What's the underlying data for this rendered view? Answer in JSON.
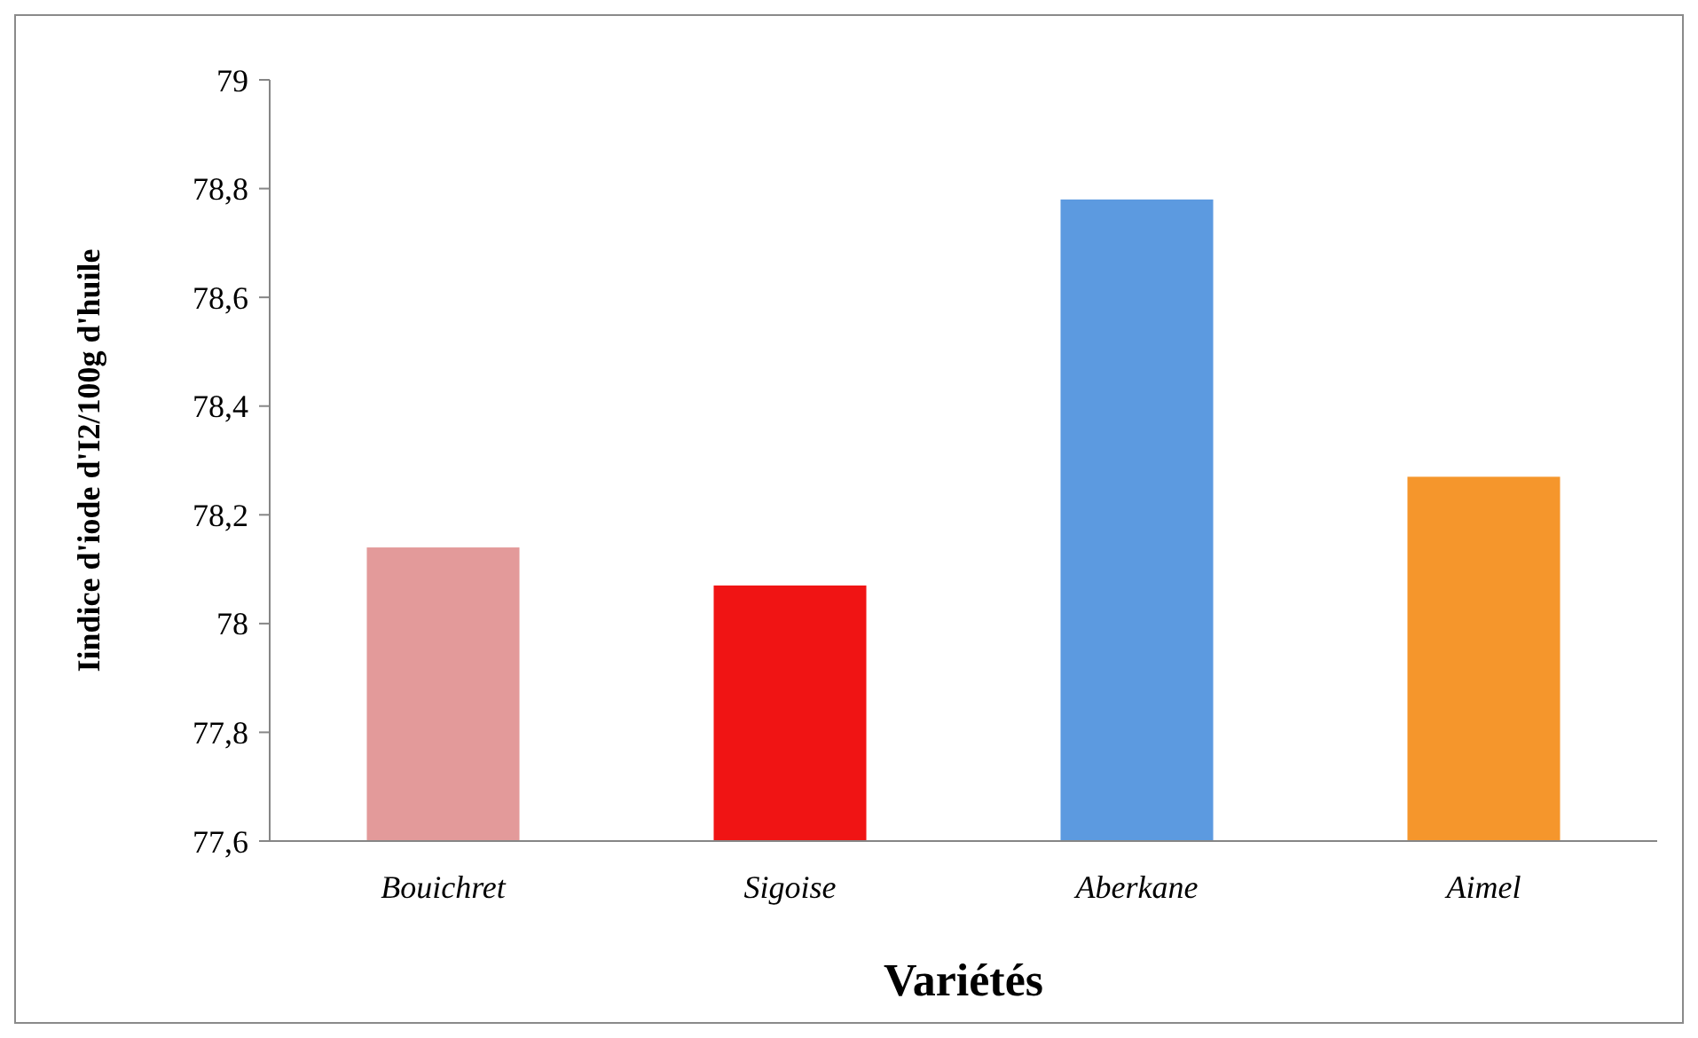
{
  "chart_data": {
    "type": "bar",
    "xlabel": "Variétés",
    "ylabel": "Iindice d'iode d'I2/100g d'huile",
    "categories": [
      "Bouichret",
      "Sigoise",
      "Aberkane",
      "Aimel"
    ],
    "values": [
      78.14,
      78.07,
      78.78,
      78.27
    ],
    "colors": [
      "#e39a9a",
      "#f01414",
      "#5c9ae0",
      "#f5962c"
    ],
    "ylim": [
      77.6,
      79
    ],
    "yticks": [
      {
        "value": 77.6,
        "label": "77,6"
      },
      {
        "value": 77.8,
        "label": "77,8"
      },
      {
        "value": 78,
        "label": "78"
      },
      {
        "value": 78.2,
        "label": "78,2"
      },
      {
        "value": 78.4,
        "label": "78,4"
      },
      {
        "value": 78.6,
        "label": "78,6"
      },
      {
        "value": 78.8,
        "label": "78,8"
      },
      {
        "value": 79,
        "label": "79"
      }
    ],
    "grid": false
  }
}
